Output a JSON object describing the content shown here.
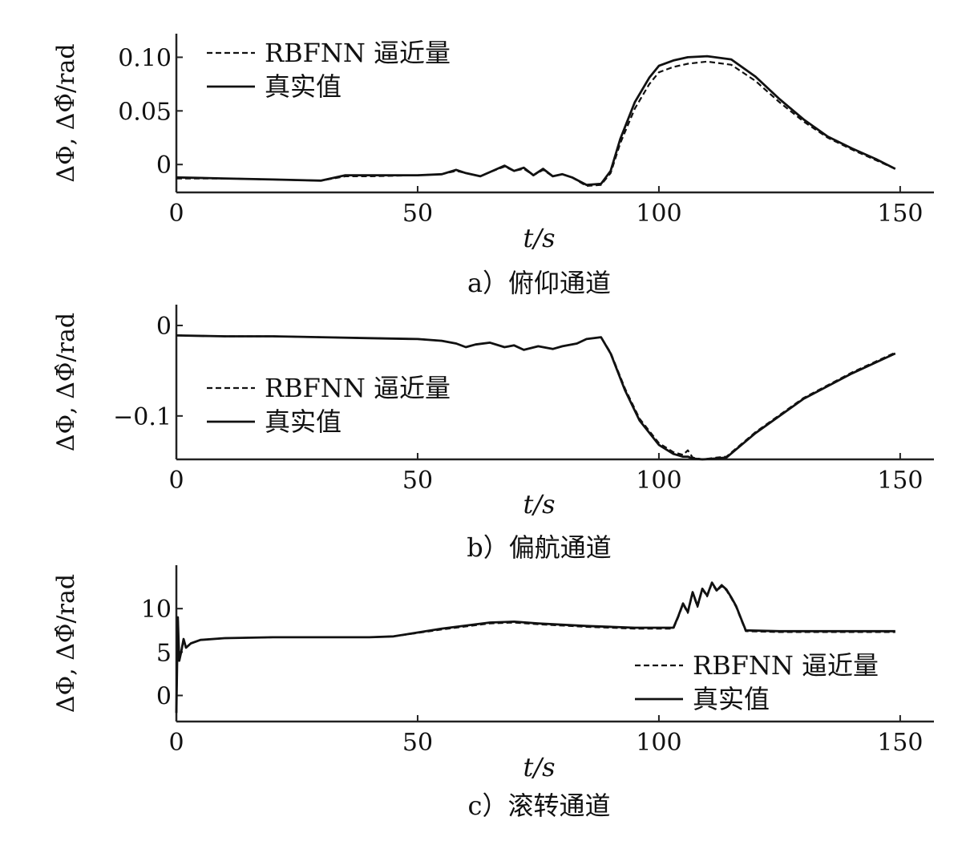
{
  "figure": {
    "xlabel": "t/s",
    "ylabel": "ΔΦ, ΔΦ̂/rad",
    "legend_labels": {
      "estimate": "RBFNN 逼近量",
      "true": "真实值"
    }
  },
  "chart_data": [
    {
      "type": "line",
      "caption": "a）俯仰通道",
      "xlabel": "t/s",
      "ylabel": "ΔΦ, ΔΦ̂/rad",
      "xlim": [
        0,
        157
      ],
      "ylim": [
        -0.026,
        0.122
      ],
      "xticks": [
        0,
        50,
        100,
        150
      ],
      "xtick_labels": [
        "0",
        "50",
        "100",
        "150"
      ],
      "yticks": [
        0,
        0.05,
        0.1
      ],
      "ytick_labels": [
        "0",
        "0.05",
        "0.10"
      ],
      "grid": false,
      "legend_position": "top-left",
      "series": [
        {
          "name": "RBFNN 逼近量",
          "style": "dashed",
          "x": [
            0,
            10,
            20,
            30,
            35,
            40,
            50,
            55,
            58,
            60,
            63,
            65,
            68,
            70,
            72,
            74,
            76,
            78,
            80,
            82,
            85,
            88,
            90,
            92,
            95,
            98,
            100,
            103,
            106,
            110,
            115,
            120,
            125,
            130,
            135,
            140,
            145,
            149
          ],
          "y": [
            -0.013,
            -0.013,
            -0.014,
            -0.015,
            -0.011,
            -0.011,
            -0.01,
            -0.009,
            -0.006,
            -0.008,
            -0.011,
            -0.007,
            -0.002,
            -0.006,
            -0.004,
            -0.01,
            -0.005,
            -0.011,
            -0.009,
            -0.012,
            -0.02,
            -0.019,
            -0.008,
            0.02,
            0.052,
            0.075,
            0.086,
            0.091,
            0.094,
            0.096,
            0.093,
            0.078,
            0.058,
            0.04,
            0.025,
            0.014,
            0.004,
            -0.004
          ]
        },
        {
          "name": "真实值",
          "style": "solid",
          "x": [
            0,
            10,
            20,
            30,
            35,
            40,
            50,
            55,
            58,
            60,
            63,
            65,
            68,
            70,
            72,
            74,
            76,
            78,
            80,
            82,
            85,
            88,
            90,
            92,
            95,
            98,
            100,
            103,
            106,
            110,
            115,
            120,
            125,
            130,
            135,
            140,
            145,
            149
          ],
          "y": [
            -0.012,
            -0.013,
            -0.014,
            -0.015,
            -0.01,
            -0.01,
            -0.01,
            -0.009,
            -0.005,
            -0.008,
            -0.011,
            -0.007,
            -0.001,
            -0.006,
            -0.003,
            -0.01,
            -0.004,
            -0.011,
            -0.009,
            -0.012,
            -0.019,
            -0.018,
            -0.006,
            0.024,
            0.058,
            0.081,
            0.092,
            0.097,
            0.1,
            0.101,
            0.098,
            0.082,
            0.061,
            0.042,
            0.026,
            0.015,
            0.005,
            -0.004
          ]
        }
      ]
    },
    {
      "type": "line",
      "caption": "b）偏航通道",
      "xlabel": "t/s",
      "ylabel": "ΔΦ, ΔΦ̂/rad",
      "xlim": [
        0,
        157
      ],
      "ylim": [
        -0.148,
        0.023
      ],
      "xticks": [
        0,
        50,
        100,
        150
      ],
      "xtick_labels": [
        "0",
        "50",
        "100",
        "150"
      ],
      "yticks": [
        0,
        -0.1
      ],
      "ytick_labels": [
        "0",
        "-0.1"
      ],
      "grid": false,
      "legend_position": "center-left",
      "series": [
        {
          "name": "RBFNN 逼近量",
          "style": "dashed",
          "x": [
            0,
            10,
            20,
            30,
            40,
            50,
            55,
            58,
            60,
            62,
            65,
            68,
            70,
            72,
            75,
            78,
            80,
            83,
            85,
            88,
            90,
            93,
            96,
            100,
            103,
            105,
            106,
            107,
            109,
            112,
            114,
            120,
            130,
            140,
            149
          ],
          "y": [
            -0.011,
            -0.012,
            -0.012,
            -0.013,
            -0.014,
            -0.015,
            -0.017,
            -0.02,
            -0.024,
            -0.021,
            -0.019,
            -0.024,
            -0.022,
            -0.027,
            -0.023,
            -0.026,
            -0.023,
            -0.02,
            -0.015,
            -0.013,
            -0.03,
            -0.07,
            -0.103,
            -0.13,
            -0.14,
            -0.143,
            -0.138,
            -0.146,
            -0.148,
            -0.146,
            -0.145,
            -0.118,
            -0.08,
            -0.052,
            -0.03
          ]
        },
        {
          "name": "真实值",
          "style": "solid",
          "x": [
            0,
            10,
            20,
            30,
            40,
            50,
            55,
            58,
            60,
            62,
            65,
            68,
            70,
            72,
            75,
            78,
            80,
            83,
            85,
            88,
            90,
            93,
            96,
            100,
            103,
            105,
            106,
            107,
            109,
            112,
            114,
            120,
            130,
            140,
            149
          ],
          "y": [
            -0.011,
            -0.012,
            -0.012,
            -0.013,
            -0.014,
            -0.015,
            -0.017,
            -0.02,
            -0.024,
            -0.021,
            -0.019,
            -0.024,
            -0.022,
            -0.027,
            -0.023,
            -0.026,
            -0.023,
            -0.02,
            -0.015,
            -0.013,
            -0.031,
            -0.072,
            -0.105,
            -0.132,
            -0.142,
            -0.145,
            -0.145,
            -0.147,
            -0.148,
            -0.147,
            -0.146,
            -0.119,
            -0.081,
            -0.053,
            -0.031
          ]
        }
      ]
    },
    {
      "type": "line",
      "caption": "c）滚转通道",
      "xlabel": "t/s",
      "ylabel": "ΔΦ, ΔΦ̂/rad",
      "xlim": [
        0,
        157
      ],
      "ylim": [
        -3,
        15
      ],
      "xticks": [
        0,
        50,
        100,
        150
      ],
      "xtick_labels": [
        "0",
        "50",
        "100",
        "150"
      ],
      "yticks": [
        0,
        5,
        10
      ],
      "ytick_labels": [
        "0",
        "5",
        "10"
      ],
      "grid": false,
      "legend_position": "lower-right",
      "series": [
        {
          "name": "RBFNN 逼近量",
          "style": "dashed",
          "x": [
            0,
            0.3,
            0.6,
            1,
            1.5,
            2,
            3,
            5,
            10,
            20,
            30,
            40,
            45,
            55,
            65,
            70,
            75,
            85,
            95,
            103,
            104,
            105,
            106,
            107,
            108,
            109,
            110,
            111,
            112,
            113,
            114,
            115,
            116,
            117,
            118,
            125,
            135,
            149
          ],
          "y": [
            -2,
            9,
            4,
            5,
            6.5,
            5.5,
            6,
            6.4,
            6.6,
            6.7,
            6.7,
            6.7,
            6.8,
            7.6,
            8.3,
            8.4,
            8.2,
            7.9,
            7.7,
            7.7,
            9.0,
            10.5,
            9.5,
            11.8,
            10.2,
            12.2,
            11.4,
            12.9,
            12.0,
            12.6,
            12.1,
            11.2,
            10.2,
            8.8,
            7.4,
            7.3,
            7.3,
            7.3
          ]
        },
        {
          "name": "真实值",
          "style": "solid",
          "x": [
            0,
            0.3,
            0.6,
            1,
            1.5,
            2,
            3,
            5,
            10,
            20,
            30,
            40,
            45,
            55,
            65,
            70,
            75,
            85,
            95,
            103,
            104,
            105,
            106,
            107,
            108,
            109,
            110,
            111,
            112,
            113,
            114,
            115,
            116,
            117,
            118,
            125,
            135,
            149
          ],
          "y": [
            -2,
            9,
            4,
            5,
            6.5,
            5.5,
            6,
            6.4,
            6.6,
            6.7,
            6.7,
            6.7,
            6.8,
            7.7,
            8.4,
            8.5,
            8.3,
            8.0,
            7.8,
            7.8,
            9.1,
            10.6,
            9.6,
            11.9,
            10.3,
            12.3,
            11.5,
            13.0,
            12.1,
            12.7,
            12.2,
            11.3,
            10.3,
            8.9,
            7.5,
            7.4,
            7.4,
            7.4
          ]
        }
      ]
    }
  ]
}
